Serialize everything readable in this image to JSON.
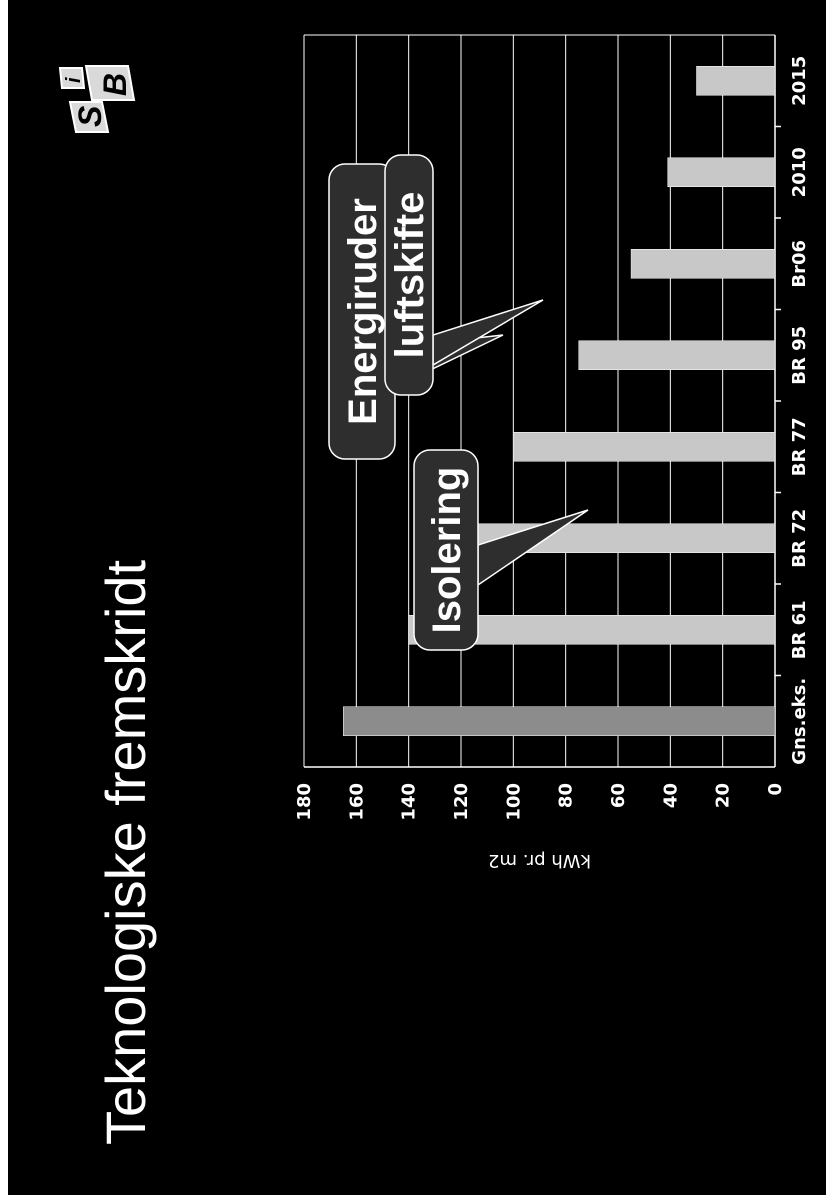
{
  "slide": {
    "title": "Teknologiske fremskridt",
    "logo_text": {
      "letter1": "S",
      "letter2": "B",
      "letter3": "i"
    }
  },
  "chart_data": {
    "type": "bar",
    "categories": [
      "Gns.eks.",
      "BR 61",
      "BR 72",
      "BR 77",
      "BR 95",
      "Br06",
      "2010",
      "2015"
    ],
    "values": [
      165,
      140,
      130,
      100,
      75,
      55,
      41,
      30
    ],
    "ylabel": "kWh pr. m2",
    "ylim": [
      0,
      180
    ],
    "yticks": [
      0,
      20,
      40,
      60,
      80,
      100,
      120,
      140,
      160,
      180
    ],
    "grid": true,
    "colors": {
      "first_bar": "#8c8c8c",
      "bars": "#c8c8c8",
      "background": "#000000",
      "text": "#ffffff"
    },
    "annotations": [
      "Isolering",
      "Energiruder",
      "luftskifte"
    ]
  }
}
